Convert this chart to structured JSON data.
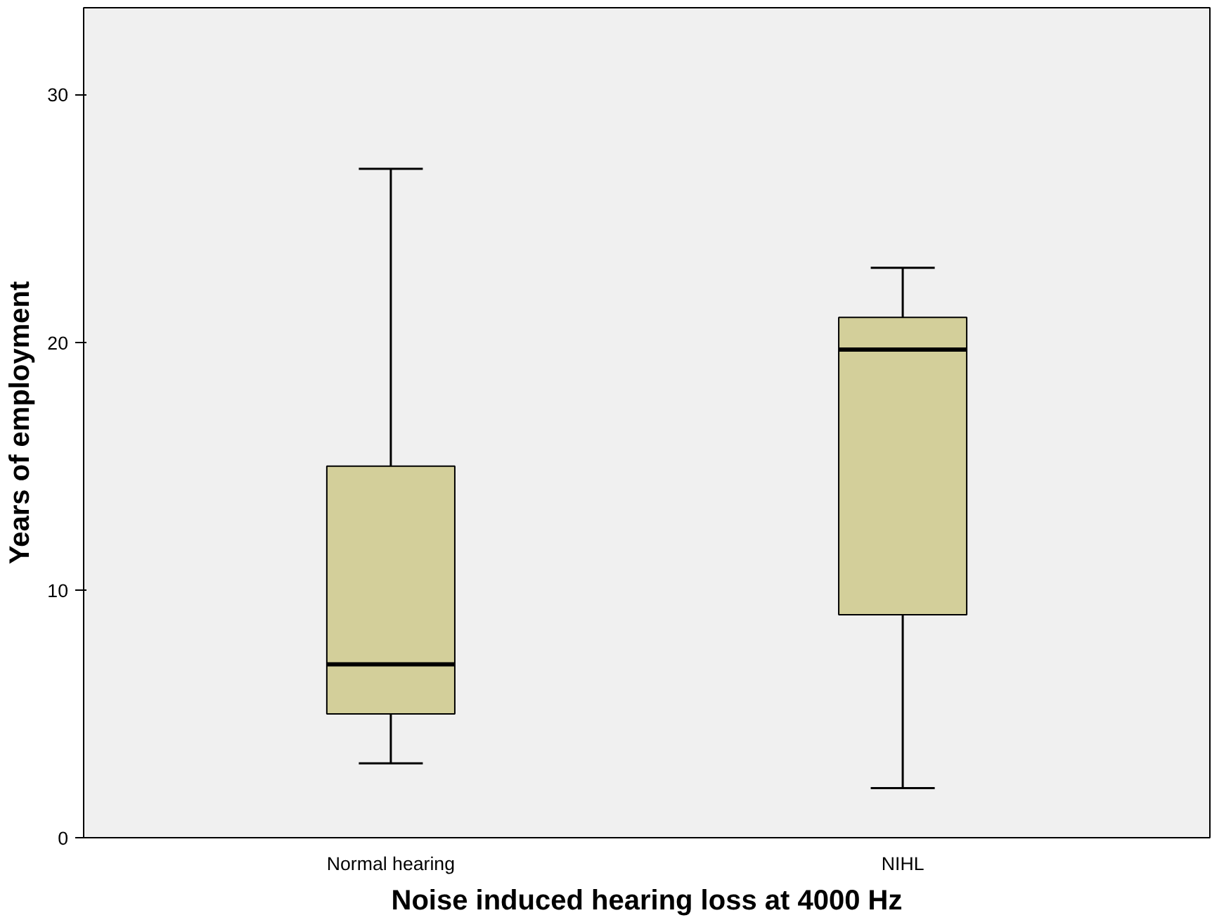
{
  "chart_data": {
    "type": "box",
    "xlabel": "Noise induced hearing loss at 4000 Hz",
    "ylabel": "Years of employment",
    "categories": [
      "Normal hearing",
      "NIHL"
    ],
    "boxes": [
      {
        "low": 3,
        "q1": 5,
        "median": 7,
        "q3": 15,
        "high": 27
      },
      {
        "low": 2,
        "q1": 9,
        "median": 19.7,
        "q3": 21,
        "high": 23
      }
    ],
    "color": "#d3cf9a",
    "ylim": [
      0,
      33.5
    ],
    "yticks": [
      0,
      10,
      20,
      30
    ],
    "grid": false
  }
}
